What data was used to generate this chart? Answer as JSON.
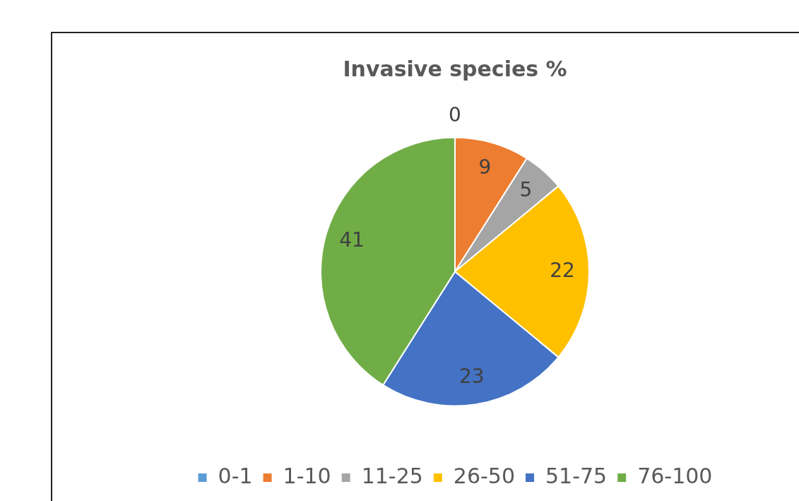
{
  "chart_data": {
    "type": "pie",
    "title": "Invasive species %",
    "categories": [
      "0-1",
      "1-10",
      "11-25",
      "26-50",
      "51-75",
      "76-100"
    ],
    "values": [
      0,
      9,
      5,
      22,
      23,
      41
    ],
    "colors": [
      "#5b9bd5",
      "#ed7d31",
      "#a5a5a5",
      "#ffc000",
      "#4472c4",
      "#70ad47"
    ],
    "value_labels": [
      "0",
      "9",
      "5",
      "22",
      "23",
      "41"
    ],
    "legend": "bottom"
  }
}
